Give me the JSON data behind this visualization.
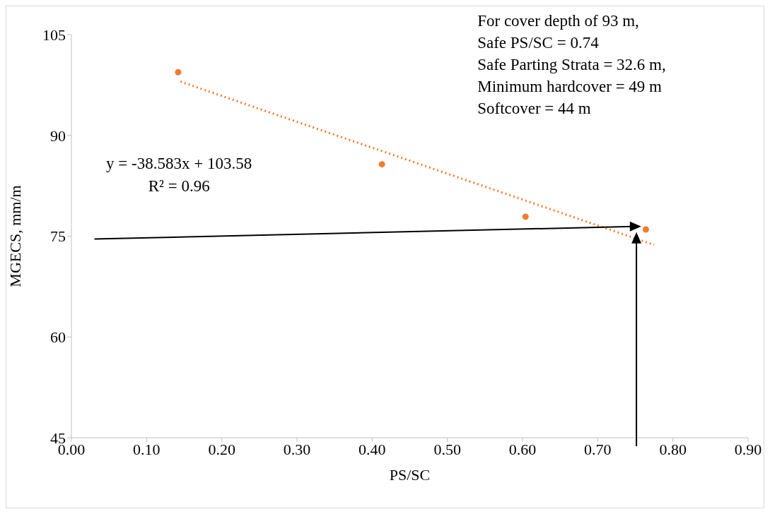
{
  "chart_data": {
    "type": "scatter",
    "xlabel": "PS/SC",
    "ylabel": "MGECS, mm/m",
    "series": [
      {
        "color": "#ed7d31",
        "marker": "circle",
        "x": [
          0.142,
          0.413,
          0.604,
          0.764
        ],
        "values": [
          99.4,
          85.7,
          77.9,
          76.0
        ]
      },
      {
        "type": "line",
        "color": "#ed7d31",
        "marker": "none",
        "line_style": "dotted",
        "x": [
          0.145,
          0.775
        ],
        "values": [
          98.0,
          73.7
        ]
      }
    ],
    "xlim": [
      0,
      0.9
    ],
    "xticks": [
      {
        "value": 0,
        "label": "0.00"
      },
      {
        "value": 0.1,
        "label": "0.10"
      },
      {
        "value": 0.2,
        "label": "0.20"
      },
      {
        "value": 0.3,
        "label": "0.30"
      },
      {
        "value": 0.4,
        "label": "0.40"
      },
      {
        "value": 0.5,
        "label": "0.50"
      },
      {
        "value": 0.6,
        "label": "0.60"
      },
      {
        "value": 0.7,
        "label": "0.70"
      },
      {
        "value": 0.8,
        "label": "0.80"
      },
      {
        "value": 0.9,
        "label": "0.90"
      }
    ],
    "ylim": [
      45,
      105
    ],
    "yticks": [
      45,
      60,
      75,
      90,
      105
    ],
    "grid": false,
    "annotations": [
      "For cover depth of 93 m,",
      "Safe PS/SC = 0.74",
      "Safe Parting Strata = 32.6 m,",
      "Minimum hardcover = 49 m",
      "Softcover = 44 m",
      "y = -38.583x + 103.58",
      "R² = 0.96"
    ]
  }
}
